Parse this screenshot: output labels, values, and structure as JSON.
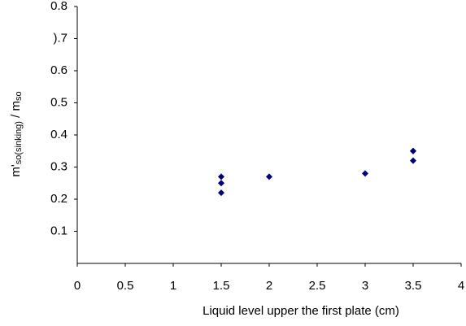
{
  "chart_data": {
    "type": "scatter",
    "xlabel": "Liquid level upper the first plate (cm)",
    "ylabel_parts": [
      "m'",
      "so(sinking)",
      " / m",
      "so"
    ],
    "series": [
      {
        "color": "#000080",
        "x": [
          1.5,
          1.5,
          1.5,
          2,
          3,
          3.5,
          3.5,
          3.5
        ],
        "values": [
          0.27,
          0.25,
          0.22,
          0.27,
          0.28,
          0.35,
          0.35,
          0.32
        ]
      }
    ],
    "xlim": [
      0,
      4
    ],
    "xticks": [
      0,
      0.5,
      1,
      1.5,
      2,
      2.5,
      3,
      3.5,
      4
    ],
    "ylim": [
      0,
      0.8
    ],
    "yticks": [
      0.1,
      0.2,
      0.3,
      0.4,
      0.5,
      0.6,
      {
        "value": 0.7,
        "label": ").7"
      },
      0.8
    ],
    "grid": false
  }
}
